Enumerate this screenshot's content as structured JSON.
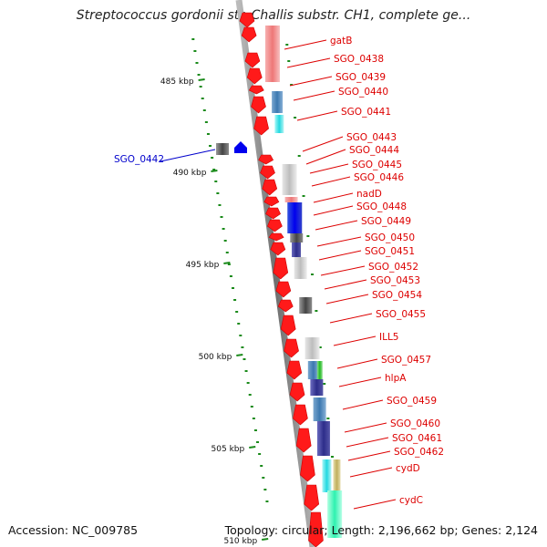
{
  "title": "Streptococcus gordonii str. Challis substr. CH1, complete ge...",
  "footer": {
    "accession": "Accession: NC_009785",
    "summary": "Topology: circular; Length: 2,196,662 bp; Genes: 2,124"
  },
  "ticks": [
    "485 kbp",
    "490 kbp",
    "495 kbp",
    "500 kbp",
    "505 kbp",
    "510 kbp"
  ],
  "colors": {
    "label_red": "#dd0000",
    "label_blue": "#0000cc",
    "gene_red": "#ff1a1a",
    "dots_green": "#1a8a1a",
    "backbone": "#7a7a7a"
  },
  "genes": [
    {
      "label": "gatB"
    },
    {
      "label": "SGO_0438"
    },
    {
      "label": "SGO_0439"
    },
    {
      "label": "SGO_0440"
    },
    {
      "label": "SGO_0441"
    },
    {
      "label": "SGO_0443"
    },
    {
      "label": "SGO_0444"
    },
    {
      "label": "SGO_0445"
    },
    {
      "label": "SGO_0446"
    },
    {
      "label": "nadD"
    },
    {
      "label": "SGO_0448"
    },
    {
      "label": "SGO_0449"
    },
    {
      "label": "SGO_0450"
    },
    {
      "label": "SGO_0451"
    },
    {
      "label": "SGO_0452"
    },
    {
      "label": "SGO_0453"
    },
    {
      "label": "SGO_0454"
    },
    {
      "label": "SGO_0455"
    },
    {
      "label": "ILL5"
    },
    {
      "label": "SGO_0457"
    },
    {
      "label": "hlpA"
    },
    {
      "label": "SGO_0459"
    },
    {
      "label": "SGO_0460"
    },
    {
      "label": "SGO_0461"
    },
    {
      "label": "SGO_0462"
    },
    {
      "label": "cydD"
    },
    {
      "label": "cydC"
    }
  ],
  "reverse_gene": {
    "label": "SGO_0442"
  }
}
